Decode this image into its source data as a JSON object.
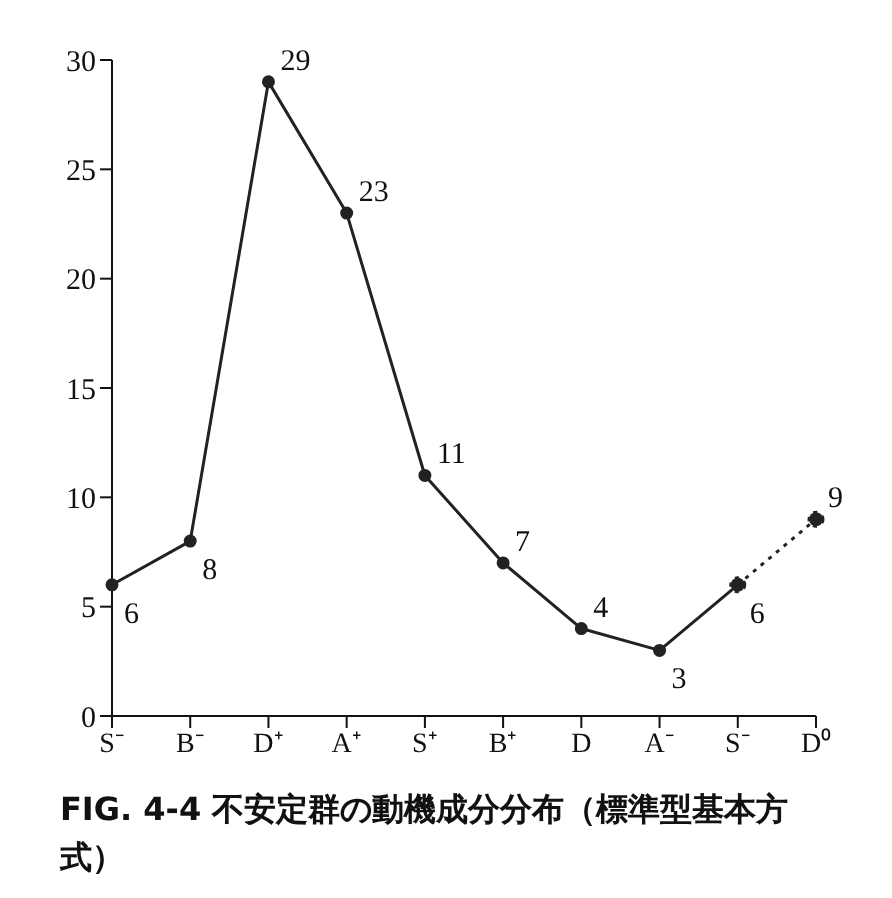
{
  "chart_data": {
    "type": "line",
    "title": "FIG. 4-4  不安定群の動機成分分布（標準型基本方式）",
    "categories": [
      "S⁻",
      "B⁻",
      "D⁺",
      "A⁺",
      "S⁺",
      "B⁺",
      "D",
      "A⁻",
      "S⁻",
      "D⁰"
    ],
    "series": [
      {
        "color": "#222222",
        "line_style": "solid",
        "values": [
          6,
          8,
          29,
          23,
          11,
          7,
          4,
          3,
          6,
          null
        ],
        "value_labels": [
          "6",
          "8",
          "29",
          "23",
          "11",
          "7",
          "4",
          "3",
          "6",
          null
        ]
      },
      {
        "color": "#222222",
        "line_style": "dotted",
        "values": [
          null,
          null,
          null,
          null,
          null,
          null,
          null,
          null,
          6,
          9
        ],
        "value_labels": [
          null,
          null,
          null,
          null,
          null,
          null,
          null,
          null,
          null,
          "9"
        ]
      }
    ],
    "ylim": [
      0,
      30
    ],
    "yticks": [
      0,
      5,
      10,
      15,
      20,
      25,
      30
    ],
    "grid": false,
    "legend": false,
    "marker": "circle"
  }
}
